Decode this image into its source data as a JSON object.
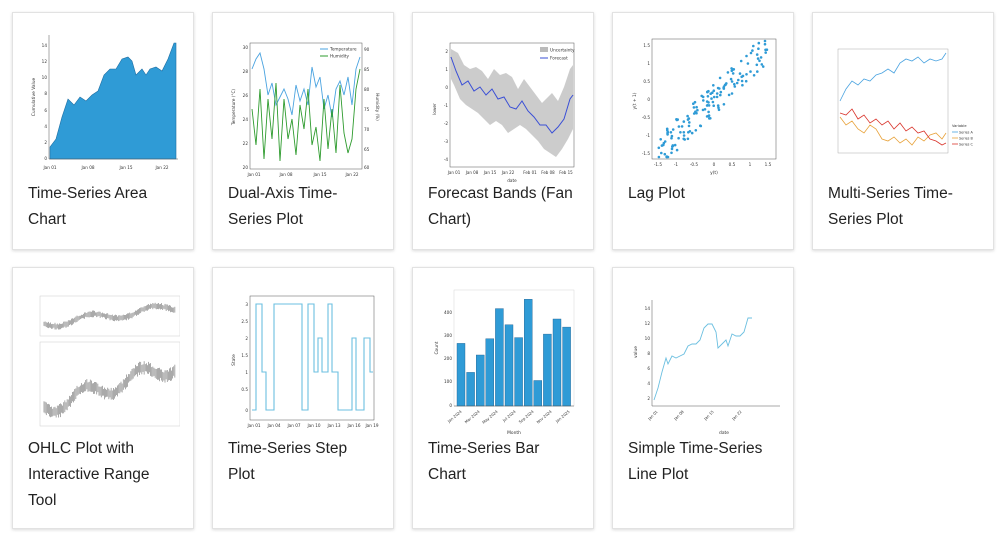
{
  "cards": [
    {
      "title": "Time-Series Area Chart",
      "thumb": {
        "type": "area",
        "ylabel": "Cumulative Value",
        "yticks": [
          "0",
          "2",
          "4",
          "6",
          "8",
          "10",
          "12",
          "14"
        ],
        "xticks": [
          "Jan 01\n2024",
          "Jan 08",
          "Jan 15",
          "Jan 22"
        ],
        "color": "#2f9bd6"
      }
    },
    {
      "title": "Dual-Axis Time-Series Plot",
      "thumb": {
        "type": "dual",
        "ylabel": "Temperature (°C)",
        "y2label": "Humidity (%)",
        "legend": [
          "Temperature",
          "Humidity"
        ],
        "yticks": [
          "30",
          "28",
          "26",
          "24",
          "22",
          "20"
        ],
        "y2ticks": [
          "90",
          "85",
          "80",
          "75",
          "70",
          "65",
          "60"
        ],
        "xticks": [
          "Jan 01\n2024",
          "Jan 08",
          "Jan 15",
          "Jan 22"
        ],
        "colors": [
          "#4aa3e0",
          "#2e9b2e"
        ]
      }
    },
    {
      "title": "Forecast Bands (Fan Chart)",
      "thumb": {
        "type": "fan",
        "ylabel": "lower",
        "xlabel": "date",
        "legend": [
          "Uncertainty",
          "Forecast"
        ],
        "yticks": [
          "2",
          "1",
          "0",
          "-1",
          "-2",
          "-3",
          "-4"
        ],
        "xticks": [
          "Jan 01",
          "Jan 08",
          "Jan 15",
          "Jan 22",
          "Feb 01",
          "Feb 08",
          "Feb 15"
        ],
        "colors": [
          "#bbbbbb",
          "#3a4fd6"
        ]
      }
    },
    {
      "title": "Lag Plot",
      "thumb": {
        "type": "lag",
        "ylabel": "y(t + 1)",
        "xlabel": "y(t)",
        "yticks": [
          "1.5",
          "1",
          "0.5",
          "0",
          "-0.5",
          "-1",
          "-1.5"
        ],
        "xticks": [
          "-1.5",
          "-1",
          "-0.5",
          "0",
          "0.5",
          "1",
          "1.5"
        ],
        "color": "#2f9bd6"
      }
    },
    {
      "title": "Multi-Series Time-Series Plot",
      "thumb": {
        "type": "multi",
        "legend_title": "Variable",
        "legend": [
          "Series A",
          "Series B",
          "Series C"
        ],
        "colors": [
          "#4aa3e0",
          "#e8a23a",
          "#d9342b"
        ]
      }
    },
    {
      "title": "OHLC Plot with Interactive Range Tool",
      "thumb": {
        "type": "ohlc",
        "color": "#555555"
      }
    },
    {
      "title": "Time-Series Step Plot",
      "thumb": {
        "type": "step",
        "ylabel": "State",
        "yticks": [
          "3",
          "2.5",
          "2",
          "1.5",
          "1",
          "0.5",
          "0"
        ],
        "xticks": [
          "Jan 01\n2024",
          "Jan 04",
          "Jan 07",
          "Jan 10",
          "Jan 13",
          "Jan 16",
          "Jan 19"
        ],
        "color": "#6bbfe0"
      }
    },
    {
      "title": "Time-Series Bar Chart",
      "thumb": {
        "type": "bar",
        "ylabel": "Count",
        "xlabel": "Month",
        "yticks": [
          "400",
          "300",
          "200",
          "100",
          "0"
        ],
        "xticks": [
          "Jan 2024",
          "Mar 2024",
          "May 2024",
          "Jul 2024",
          "Sep 2024",
          "Nov 2024",
          "Jan 2025"
        ],
        "color": "#2f9bd6"
      }
    },
    {
      "title": "Simple Time-Series Line Plot",
      "thumb": {
        "type": "line",
        "ylabel": "value",
        "xlabel": "date",
        "yticks": [
          "14",
          "12",
          "10",
          "8",
          "6",
          "4",
          "2"
        ],
        "xticks": [
          "Jan 01\n2024",
          "Jan 08",
          "Jan 15",
          "Jan 22"
        ],
        "color": "#6bbfe0"
      }
    }
  ]
}
